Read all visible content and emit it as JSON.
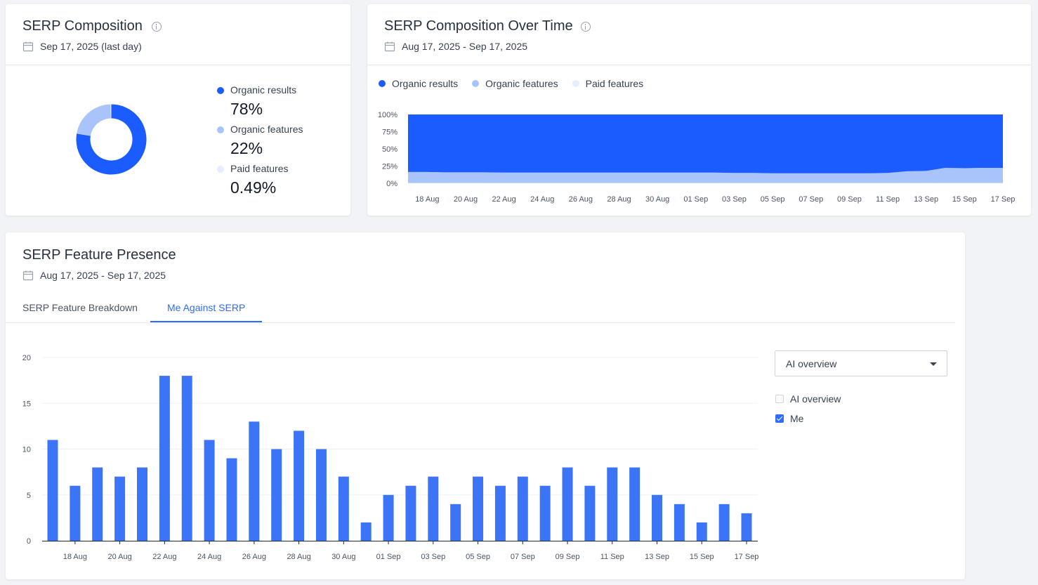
{
  "composition": {
    "title": "SERP Composition",
    "date": "Sep 17, 2025 (last day)",
    "legend": [
      {
        "label": "Organic results",
        "value": "78%",
        "color": "#1a5cff"
      },
      {
        "label": "Organic features",
        "value": "22%",
        "color": "#a9c4fb"
      },
      {
        "label": "Paid features",
        "value": "0.49%",
        "color": "#e6edfd"
      }
    ],
    "chart_data": {
      "type": "pie",
      "labels": [
        "Organic results",
        "Organic features",
        "Paid features"
      ],
      "values": [
        78,
        22,
        0.49
      ]
    }
  },
  "overtime": {
    "title": "SERP Composition Over Time",
    "date": "Aug 17, 2025 - Sep 17, 2025",
    "legend": [
      {
        "label": "Organic results",
        "color": "#1a5cff"
      },
      {
        "label": "Organic features",
        "color": "#a9c4fb"
      },
      {
        "label": "Paid features",
        "color": "#e6edfd"
      }
    ],
    "chart_data": {
      "type": "area",
      "stacked": true,
      "ytick_labels": [
        "100%",
        "75%",
        "50%",
        "25%",
        "0%"
      ],
      "ylim": [
        0,
        100
      ],
      "xtick_labels": [
        "18 Aug",
        "20 Aug",
        "22 Aug",
        "24 Aug",
        "26 Aug",
        "28 Aug",
        "30 Aug",
        "01 Sep",
        "03 Sep",
        "05 Sep",
        "07 Sep",
        "09 Sep",
        "11 Sep",
        "13 Sep",
        "15 Sep",
        "17 Sep"
      ],
      "x": [
        "17 Aug",
        "18 Aug",
        "19 Aug",
        "20 Aug",
        "21 Aug",
        "22 Aug",
        "23 Aug",
        "24 Aug",
        "25 Aug",
        "26 Aug",
        "27 Aug",
        "28 Aug",
        "29 Aug",
        "30 Aug",
        "31 Aug",
        "01 Sep",
        "02 Sep",
        "03 Sep",
        "04 Sep",
        "05 Sep",
        "06 Sep",
        "07 Sep",
        "08 Sep",
        "09 Sep",
        "10 Sep",
        "11 Sep",
        "12 Sep",
        "13 Sep",
        "14 Sep",
        "15 Sep",
        "16 Sep",
        "17 Sep"
      ],
      "series": [
        {
          "name": "Paid features",
          "values": [
            0.5,
            0.5,
            0.5,
            0.5,
            0.5,
            0.5,
            0.5,
            0.5,
            0.5,
            0.5,
            0.5,
            0.5,
            0.5,
            0.5,
            0.5,
            0.5,
            0.5,
            0.5,
            0.5,
            0.5,
            0.5,
            0.5,
            0.5,
            0.5,
            0.5,
            0.5,
            0.5,
            0.5,
            0.5,
            0.5,
            0.5,
            0.5
          ]
        },
        {
          "name": "Organic features",
          "values": [
            16,
            16,
            15.5,
            15.5,
            15.5,
            15,
            15,
            15,
            15,
            15,
            15,
            15,
            15,
            15,
            15,
            15,
            15,
            14.5,
            14.5,
            14,
            14,
            14,
            14,
            14,
            14,
            14.5,
            17,
            17.5,
            22,
            21.5,
            22,
            22
          ]
        },
        {
          "name": "Organic results",
          "values": [
            83.5,
            83.5,
            84,
            84,
            84,
            84.5,
            84.5,
            84.5,
            84.5,
            84.5,
            84.5,
            84.5,
            84.5,
            84.5,
            84.5,
            84.5,
            84.5,
            85,
            85,
            85.5,
            85.5,
            85.5,
            85.5,
            85.5,
            85.5,
            85,
            82.5,
            82,
            77.5,
            78,
            77.5,
            77.5
          ]
        }
      ]
    }
  },
  "presence": {
    "title": "SERP Feature Presence",
    "date": "Aug 17, 2025 - Sep 17, 2025",
    "tabs": [
      {
        "label": "SERP Feature Breakdown",
        "active": false
      },
      {
        "label": "Me Against SERP",
        "active": true
      }
    ],
    "dropdown_value": "AI overview",
    "checkboxes": [
      {
        "label": "AI overview",
        "checked": false
      },
      {
        "label": "Me",
        "checked": true
      }
    ],
    "chart_data": {
      "type": "bar",
      "ylim": [
        0,
        20
      ],
      "ytick_labels": [
        "20",
        "15",
        "10",
        "5",
        "0"
      ],
      "xtick_labels": [
        "18 Aug",
        "20 Aug",
        "22 Aug",
        "24 Aug",
        "26 Aug",
        "28 Aug",
        "30 Aug",
        "01 Sep",
        "03 Sep",
        "05 Sep",
        "07 Sep",
        "09 Sep",
        "11 Sep",
        "13 Sep",
        "15 Sep",
        "17 Sep"
      ],
      "categories": [
        "17 Aug",
        "18 Aug",
        "19 Aug",
        "20 Aug",
        "21 Aug",
        "22 Aug",
        "23 Aug",
        "24 Aug",
        "25 Aug",
        "26 Aug",
        "27 Aug",
        "28 Aug",
        "29 Aug",
        "30 Aug",
        "31 Aug",
        "01 Sep",
        "02 Sep",
        "03 Sep",
        "04 Sep",
        "05 Sep",
        "06 Sep",
        "07 Sep",
        "08 Sep",
        "09 Sep",
        "10 Sep",
        "11 Sep",
        "12 Sep",
        "13 Sep",
        "14 Sep",
        "15 Sep",
        "16 Sep",
        "17 Sep"
      ],
      "series": [
        {
          "name": "Me",
          "color": "#3b74f6",
          "values": [
            11,
            6,
            8,
            7,
            8,
            18,
            18,
            11,
            9,
            13,
            10,
            12,
            10,
            7,
            2,
            5,
            6,
            7,
            4,
            7,
            6,
            7,
            6,
            8,
            6,
            8,
            8,
            5,
            4,
            2,
            4,
            3
          ]
        }
      ]
    }
  }
}
